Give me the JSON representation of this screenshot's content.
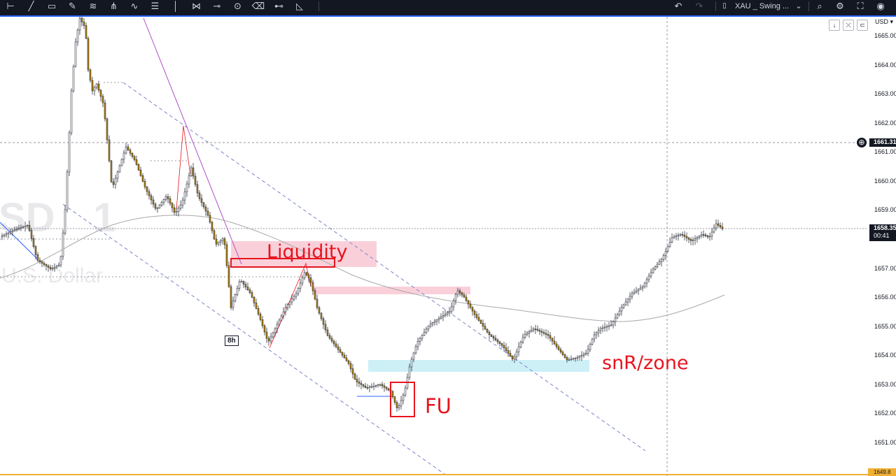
{
  "toolbar": {
    "tools": [
      {
        "name": "pin-icon",
        "glyph": "⊢"
      },
      {
        "name": "trend-line-icon",
        "glyph": "╱"
      },
      {
        "name": "rectangle-icon",
        "glyph": "▭"
      },
      {
        "name": "brush-icon",
        "glyph": "✎"
      },
      {
        "name": "fib-icon",
        "glyph": "≋"
      },
      {
        "name": "pitchfork-icon",
        "glyph": "⋔"
      },
      {
        "name": "path-icon",
        "glyph": "∿"
      },
      {
        "name": "text-lines-icon",
        "glyph": "☰"
      },
      {
        "name": "vertical-line-icon",
        "glyph": "│"
      },
      {
        "name": "pattern-icon",
        "glyph": "⋈"
      },
      {
        "name": "horizontal-line-icon",
        "glyph": "⊸"
      },
      {
        "name": "circle-tool-icon",
        "glyph": "⊙"
      },
      {
        "name": "eraser-icon",
        "glyph": "⌫"
      },
      {
        "name": "measure-icon",
        "glyph": "⊷"
      },
      {
        "name": "polygon-icon",
        "glyph": "◺"
      }
    ],
    "undo_glyph": "↶",
    "redo_glyph": "↷",
    "symbol_label": "XAU _ Swing ...",
    "chevron_glyph": "⌄",
    "search_glyph": "⌕",
    "settings_glyph": "⚙",
    "fullscreen_glyph": "⛶",
    "camera_glyph": "◉"
  },
  "axis": {
    "currency": "USD",
    "currency_chevron": "▾",
    "buttons": [
      "↓",
      "⤫",
      "⊂"
    ],
    "labels": [
      {
        "text": "1665.00",
        "price": 1665
      },
      {
        "text": "1664.00",
        "price": 1664
      },
      {
        "text": "1663.00",
        "price": 1663
      },
      {
        "text": "1662.00",
        "price": 1662
      },
      {
        "text": "1661.00",
        "price": 1661
      },
      {
        "text": "1660.00",
        "price": 1660
      },
      {
        "text": "1659.00",
        "price": 1659
      },
      {
        "text": "1657.00",
        "price": 1657
      },
      {
        "text": "1656.00",
        "price": 1656
      },
      {
        "text": "1655.00",
        "price": 1655
      },
      {
        "text": "1654.00",
        "price": 1654
      },
      {
        "text": "1653.00",
        "price": 1653
      },
      {
        "text": "1652.00",
        "price": 1652
      },
      {
        "text": "1651.00",
        "price": 1651
      }
    ],
    "crosshair_price": "1661.31",
    "current_price": "1658.35",
    "countdown": "00:41",
    "bottom_price": "1649.8",
    "plus_glyph": "⊕"
  },
  "watermark": {
    "symbol": "SD",
    "number": "1",
    "description": "U.S. Dollar"
  },
  "annotations": {
    "liquidity": "Liquidity",
    "fu": "FU",
    "snr_zone": "snR/zone",
    "timeframe_label": "8h"
  },
  "colors": {
    "toolbar_bg": "#131722",
    "accent": "#2962ff",
    "candle_bull": "#131722",
    "candle_bear": "#b8860b",
    "red_annotation": "#e8141e",
    "pink_zone": "#f8c8d4",
    "cyan_zone": "#c8eef6",
    "channel_dash": "#7b83c9",
    "trendline": "#b04ec4",
    "ma_line": "#a8a8a8",
    "price_tag": "#131722",
    "bottom_tag": "#f0b033"
  }
}
